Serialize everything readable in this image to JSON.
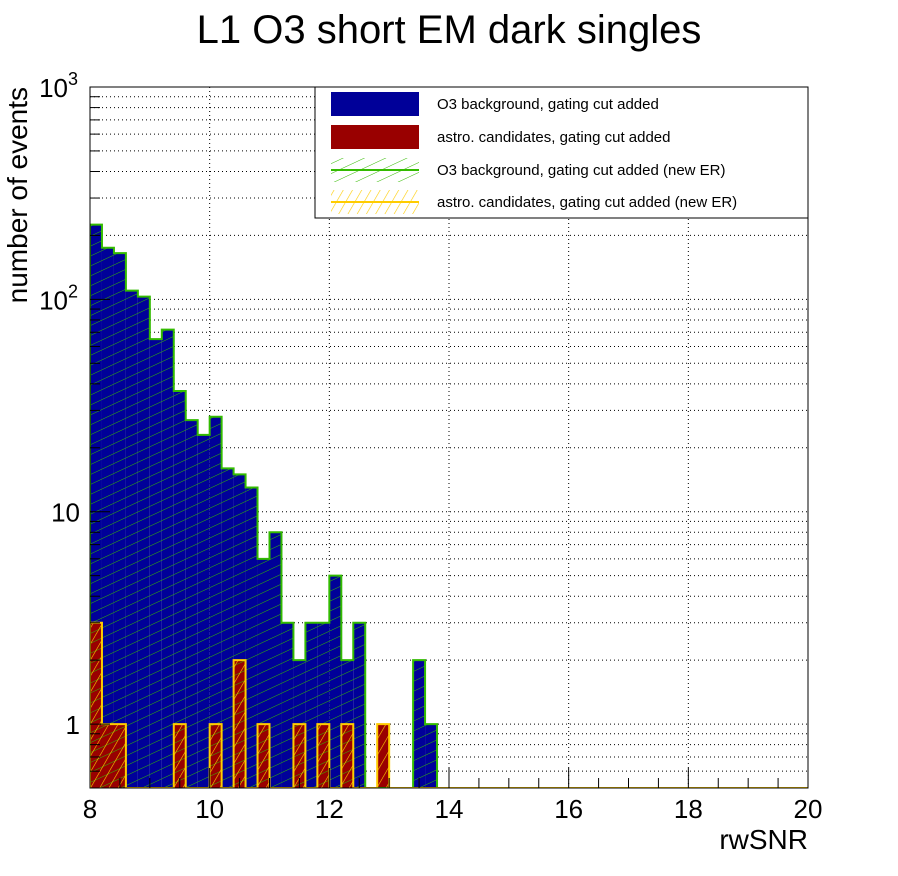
{
  "chart_data": {
    "type": "bar",
    "title": "L1 O3 short EM dark singles",
    "xlabel": "rwSNR",
    "ylabel": "number of events",
    "x_scale": "linear",
    "y_scale": "log",
    "xlim": [
      8,
      20
    ],
    "ylim": [
      0.5,
      1000
    ],
    "grid": true,
    "legend_position": "top-right",
    "x_ticks": [
      {
        "value": 8,
        "label": "8"
      },
      {
        "value": 10,
        "label": "10"
      },
      {
        "value": 12,
        "label": "12"
      },
      {
        "value": 14,
        "label": "14"
      },
      {
        "value": 16,
        "label": "16"
      },
      {
        "value": 18,
        "label": "18"
      },
      {
        "value": 20,
        "label": "20"
      }
    ],
    "y_ticks": [
      {
        "value": 1,
        "label": "1",
        "exp": ""
      },
      {
        "value": 10,
        "label": "10",
        "exp": ""
      },
      {
        "value": 100,
        "label": "10",
        "exp": "2"
      },
      {
        "value": 1000,
        "label": "10",
        "exp": "3"
      }
    ],
    "bin_width": 0.2,
    "bin_edges_start": 8,
    "series": [
      {
        "name": "O3 background, gating cut added",
        "fill": "#000099",
        "style": "solid",
        "values": [
          225,
          175,
          165,
          110,
          103,
          65,
          72,
          37,
          27,
          23,
          28,
          16,
          15,
          13,
          6,
          8,
          3,
          2,
          3,
          3,
          5,
          2,
          3,
          0,
          0,
          0,
          0,
          2,
          1
        ]
      },
      {
        "name": "astro. candidates, gating cut added",
        "fill": "#990000",
        "style": "solid",
        "values": [
          3,
          1,
          1,
          0,
          0,
          0,
          0,
          1,
          0,
          0,
          1,
          0,
          2,
          0,
          1,
          0,
          0,
          1,
          0,
          1,
          0,
          1,
          0,
          0,
          1,
          0,
          0,
          0,
          0
        ]
      },
      {
        "name": "O3 background, gating cut added (new ER)",
        "line": "#33bb00",
        "style": "hatch",
        "values": [
          225,
          175,
          165,
          110,
          103,
          65,
          72,
          37,
          27,
          23,
          28,
          16,
          15,
          13,
          6,
          8,
          3,
          2,
          3,
          3,
          5,
          2,
          3,
          0,
          0,
          0,
          0,
          2,
          1
        ]
      },
      {
        "name": "astro. candidates, gating cut added (new ER)",
        "line": "#ffcc00",
        "style": "hatch",
        "values": [
          3,
          1,
          1,
          0,
          0,
          0,
          0,
          1,
          0,
          0,
          1,
          0,
          2,
          0,
          1,
          0,
          0,
          1,
          0,
          1,
          0,
          1,
          0,
          0,
          1,
          0,
          0,
          0,
          0
        ]
      }
    ]
  }
}
